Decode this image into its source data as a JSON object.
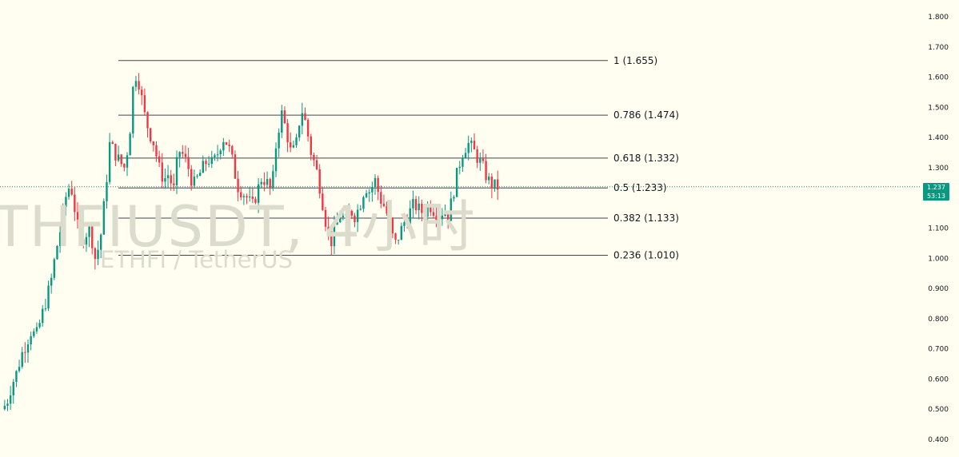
{
  "watermark": {
    "symbol": "THFIUSDT, 4小时",
    "description": "ETHFI / TetherUS"
  },
  "price_tag": {
    "price": "1.237",
    "countdown": "53:13"
  },
  "colors": {
    "up": "#089981",
    "down": "#f23645",
    "fib_line": "#434651",
    "background": "#fffef0",
    "axis_text": "#131722"
  },
  "chart_data": {
    "type": "candlestick",
    "y_axis": {
      "position": "right",
      "ylim": [
        0.4,
        1.8
      ],
      "ticks": [
        "1.800",
        "1.700",
        "1.600",
        "1.500",
        "1.400",
        "1.300",
        "1.200",
        "1.100",
        "1.000",
        "0.900",
        "0.800",
        "0.700",
        "0.600",
        "0.500",
        "0.400"
      ]
    },
    "current_price": 1.237,
    "fibonacci": [
      {
        "label": "1 (1.655)",
        "level": 1,
        "price": 1.655
      },
      {
        "label": "0.786 (1.474)",
        "level": 0.786,
        "price": 1.474
      },
      {
        "label": "0.618 (1.332)",
        "level": 0.618,
        "price": 1.332
      },
      {
        "label": "0.5 (1.233)",
        "level": 0.5,
        "price": 1.233
      },
      {
        "label": "0.382 (1.133)",
        "level": 0.382,
        "price": 1.133
      },
      {
        "label": "0.236 (1.010)",
        "level": 0.236,
        "price": 1.01
      }
    ],
    "close_path": [
      0.5,
      0.52,
      0.58,
      0.62,
      0.68,
      0.72,
      0.76,
      0.74,
      0.8,
      0.86,
      0.92,
      1.02,
      1.1,
      1.2,
      1.25,
      1.15,
      1.05,
      1.08,
      1.1,
      1.0,
      1.05,
      1.2,
      1.38,
      1.35,
      1.32,
      1.3,
      1.4,
      1.62,
      1.58,
      1.48,
      1.42,
      1.38,
      1.3,
      1.26,
      1.28,
      1.22,
      1.36,
      1.34,
      1.3,
      1.24,
      1.27,
      1.3,
      1.33,
      1.31,
      1.35,
      1.4,
      1.38,
      1.32,
      1.24,
      1.22,
      1.2,
      1.17,
      1.22,
      1.27,
      1.25,
      1.22,
      1.4,
      1.48,
      1.42,
      1.34,
      1.38,
      1.5,
      1.44,
      1.35,
      1.3,
      1.22,
      1.12,
      1.05,
      1.1,
      1.15,
      1.12,
      1.16,
      1.14,
      1.18,
      1.24,
      1.22,
      1.26,
      1.2,
      1.17,
      1.12,
      1.04,
      1.08,
      1.12,
      1.15,
      1.18,
      1.16,
      1.15,
      1.18,
      1.16,
      1.14,
      1.16,
      1.14,
      1.22,
      1.3,
      1.36,
      1.38,
      1.36,
      1.33,
      1.3,
      1.26,
      1.24,
      1.237
    ]
  }
}
